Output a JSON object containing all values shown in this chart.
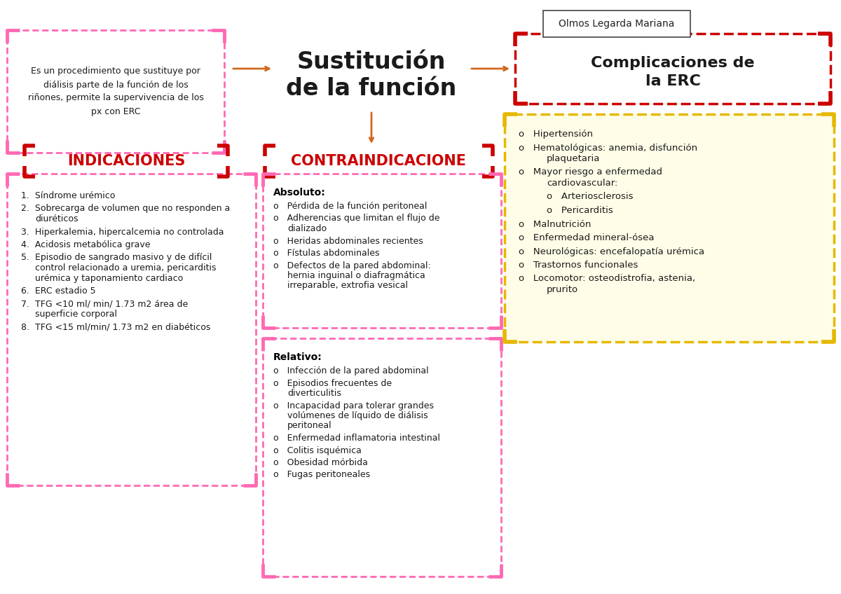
{
  "title": "Sustitución\nde la función",
  "author_box": "Olmos Legarda Mariana",
  "intro_text": "Es un procedimiento que sustituye por\ndiálisis parte de la función de los\nriñones, permite la supervivencia de los\npx con ERC",
  "section1_title": "INDICACIONES",
  "section2_title": "CONTRAINDICACIONE",
  "section3_title": "Complicaciones de\nla ERC",
  "indicaciones": [
    "Síndrome urémico",
    "Sobrecarga de volumen que no responden a\ndiuréticos",
    "Hiperkalemia, hipercalcemia no controlada",
    "Acidosis metabólica grave",
    "Episodio de sangrado masivo y de difícil\ncontrol relacionado a uremia, pericarditis\nurémica y taponamiento cardiaco",
    "ERC estadio 5",
    "TFG <10 ml/ min/ 1.73 m2 área de\nsuperficie corporal",
    "TFG <15 ml/min/ 1.73 m2 en diabéticos"
  ],
  "absoluto_title": "Absoluto:",
  "absoluto": [
    "Pérdida de la función peritoneal",
    "Adherencias que limitan el flujo de\ndializado",
    "Heridas abdominales recientes",
    "Fístulas abdominales",
    "Defectos de la pared abdominal:\nhernia inguinal o diafragmática\nirreparable, extrofia vesical"
  ],
  "relativo_title": "Relativo:",
  "relativo": [
    "Infección de la pared abdominal",
    "Episodios frecuentes de\ndiverticulitis",
    "Incapacidad para tolerar grandes\nvolúmenes de líquido de diálisis\nperitoneal",
    "Enfermedad inflamatoria intestinal",
    "Colitis isquémica",
    "Obesidad mórbida",
    "Fugas peritoneales"
  ],
  "complicaciones": [
    [
      "Hipertensión",
      false
    ],
    [
      "Hematológicas: anemia, disfunción\nplaquetaria",
      false
    ],
    [
      "Mayor riesgo a enfermedad\ncardiovascular:",
      false
    ],
    [
      "Arteriosclerosis",
      true
    ],
    [
      "Pericarditis",
      true
    ],
    [
      "Malnutrición",
      false
    ],
    [
      "Enfermedad mineral-ósea",
      false
    ],
    [
      "Neurológicas: encefalopatía urémica",
      false
    ],
    [
      "Trastornos funcionales",
      false
    ],
    [
      "Locomotor: osteodistrofia, astenia,\nprurito",
      false
    ]
  ],
  "bg_color": "#ffffff",
  "pink_dash": "#FF69B4",
  "dark_red_dash": "#CC0000",
  "yellow_dash": "#E6B800",
  "yellow_bg": "#FFFDE7",
  "text_color": "#1a1a1a",
  "orange_arrow": "#D2691E"
}
